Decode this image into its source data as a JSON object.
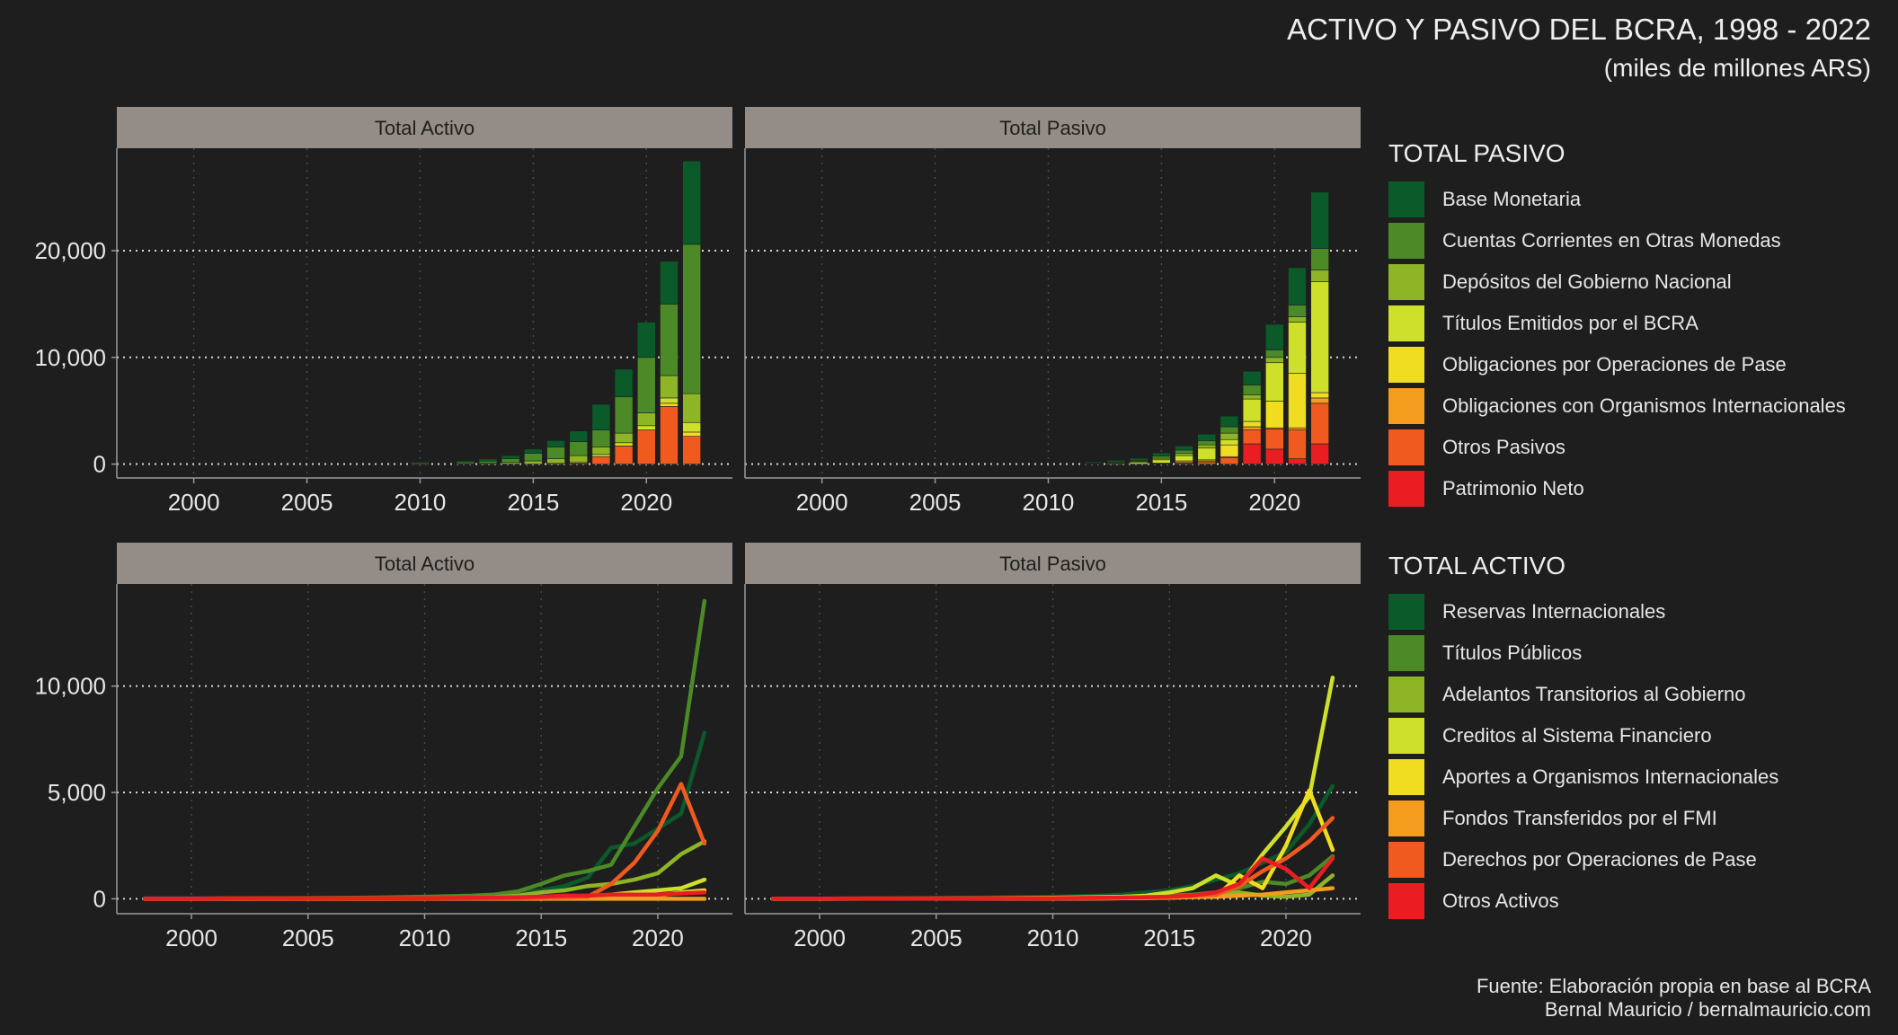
{
  "header": {
    "title": "ACTIVO Y PASIVO DEL BCRA, 1998 - 2022",
    "subtitle": "(miles de millones ARS)"
  },
  "caption": {
    "line1": "Fuente: Elaboración propia en base al BCRA",
    "line2": "Bernal Mauricio / bernalmauricio.com"
  },
  "colors": {
    "background": "#1e1e1e",
    "strip": "#948d87",
    "palette": [
      "#0b5a2a",
      "#4b8a26",
      "#8db526",
      "#cfe02a",
      "#f0dc20",
      "#f39c1e",
      "#f05a1e",
      "#ea1e22"
    ]
  },
  "legends": {
    "pasivo": {
      "title": "TOTAL PASIVO",
      "items": [
        "Base Monetaria",
        "Cuentas Corrientes en Otras Monedas",
        "Depósitos del Gobierno Nacional",
        "Títulos Emitidos por el BCRA",
        "Obligaciones por Operaciones de Pase",
        "Obligaciones con Organismos Internacionales",
        "Otros Pasivos",
        "Patrimonio Neto"
      ]
    },
    "activo": {
      "title": "TOTAL ACTIVO",
      "items": [
        "Reservas Internacionales",
        "Títulos Públicos",
        "Adelantos Transitorios al Gobierno",
        "Creditos al Sistema Financiero",
        "Aportes a Organismos Internacionales",
        "Fondos Transferidos por el FMI",
        "Derechos por Operaciones de Pase",
        "Otros Activos"
      ]
    }
  },
  "chart_data": [
    {
      "type": "bar",
      "stacked": true,
      "panel": "Total Activo",
      "x": [
        2010,
        2012,
        2013,
        2014,
        2015,
        2016,
        2017,
        2018,
        2019,
        2020,
        2021,
        2022
      ],
      "series": [
        {
          "name": "Derechos por Operaciones de Pase",
          "values": [
            0,
            0,
            0,
            0,
            0,
            0,
            100,
            700,
            1700,
            3200,
            5400,
            2600
          ]
        },
        {
          "name": "Aportes a Organismos Internacionales",
          "values": [
            0,
            0,
            0,
            0,
            0,
            0,
            0,
            0,
            0,
            0,
            300,
            400
          ]
        },
        {
          "name": "Creditos al Sistema Financiero",
          "values": [
            0,
            0,
            0,
            0,
            0,
            100,
            100,
            200,
            300,
            400,
            500,
            900
          ]
        },
        {
          "name": "Adelantos Transitorios al Gobierno",
          "values": [
            30,
            50,
            80,
            150,
            300,
            400,
            600,
            700,
            900,
            1200,
            2100,
            2700
          ]
        },
        {
          "name": "Títulos Públicos",
          "values": [
            100,
            150,
            200,
            350,
            700,
            1100,
            1300,
            1600,
            3400,
            5200,
            6700,
            14000
          ]
        },
        {
          "name": "Reservas Internacionales",
          "values": [
            70,
            100,
            200,
            300,
            400,
            600,
            1000,
            2400,
            2600,
            3300,
            4000,
            7800
          ]
        }
      ],
      "ylim": [
        -1300,
        29600
      ],
      "yticks": [
        0,
        10000,
        20000
      ],
      "ytick_labels": [
        "0",
        "10,000",
        "20,000"
      ],
      "xticks": [
        2000,
        2005,
        2010,
        2015,
        2020
      ],
      "xlim": [
        1996.6,
        2023.8
      ],
      "grid": true
    },
    {
      "type": "bar",
      "stacked": true,
      "panel": "Total Pasivo",
      "x": [
        2012,
        2013,
        2014,
        2015,
        2016,
        2017,
        2018,
        2019,
        2020,
        2021,
        2022
      ],
      "series": [
        {
          "name": "Patrimonio Neto",
          "values": [
            0,
            0,
            0,
            0,
            0,
            0,
            0,
            1900,
            1400,
            500,
            1900
          ]
        },
        {
          "name": "Otros Pasivos",
          "values": [
            0,
            0,
            0,
            50,
            100,
            200,
            600,
            1300,
            1900,
            2700,
            3800
          ]
        },
        {
          "name": "Obligaciones con Organismos Internacionales",
          "values": [
            0,
            0,
            0,
            50,
            100,
            100,
            100,
            300,
            100,
            200,
            500
          ]
        },
        {
          "name": "Obligaciones por Operaciones de Pase",
          "values": [
            0,
            0,
            0,
            0,
            100,
            100,
            1100,
            500,
            2500,
            5100,
            500
          ]
        },
        {
          "name": "Títulos Emitidos por el BCRA",
          "values": [
            50,
            80,
            150,
            300,
            500,
            1100,
            500,
            2100,
            3600,
            4800,
            10400
          ]
        },
        {
          "name": "Depósitos del Gobierno Nacional",
          "values": [
            0,
            50,
            100,
            150,
            200,
            300,
            600,
            400,
            500,
            500,
            1100
          ]
        },
        {
          "name": "Cuentas Corrientes en Otras Monedas",
          "values": [
            50,
            80,
            100,
            200,
            300,
            400,
            600,
            900,
            700,
            1100,
            2000
          ]
        },
        {
          "name": "Base Monetaria",
          "values": [
            100,
            150,
            200,
            300,
            400,
            600,
            1000,
            1300,
            2400,
            3500,
            5300
          ]
        }
      ],
      "ylim": [
        -1300,
        29600
      ],
      "yticks": [
        0,
        10000,
        20000
      ],
      "ytick_labels": [
        "0",
        "10,000",
        "20,000"
      ],
      "xticks": [
        2000,
        2005,
        2010,
        2015,
        2020
      ],
      "xlim": [
        1996.6,
        2023.8
      ],
      "grid": true
    },
    {
      "type": "line",
      "panel": "Total Activo",
      "x": [
        1998,
        2000,
        2002,
        2004,
        2006,
        2008,
        2010,
        2012,
        2013,
        2014,
        2015,
        2016,
        2017,
        2018,
        2019,
        2020,
        2021,
        2022
      ],
      "series": [
        {
          "name": "Reservas Internacionales",
          "values": [
            25,
            25,
            30,
            30,
            30,
            40,
            70,
            100,
            200,
            300,
            400,
            600,
            1000,
            2400,
            2600,
            3300,
            4000,
            7800
          ]
        },
        {
          "name": "Títulos Públicos",
          "values": [
            10,
            10,
            20,
            30,
            40,
            60,
            100,
            150,
            200,
            350,
            700,
            1100,
            1300,
            1600,
            3400,
            5200,
            6700,
            14000
          ]
        },
        {
          "name": "Adelantos Transitorios al Gobierno",
          "values": [
            5,
            5,
            10,
            10,
            15,
            20,
            30,
            50,
            80,
            150,
            300,
            400,
            600,
            700,
            900,
            1200,
            2100,
            2700
          ]
        },
        {
          "name": "Creditos al Sistema Financiero",
          "values": [
            5,
            5,
            10,
            10,
            10,
            10,
            10,
            20,
            20,
            30,
            40,
            100,
            100,
            200,
            300,
            400,
            500,
            900
          ]
        },
        {
          "name": "Aportes a Organismos Internacionales",
          "values": [
            0,
            0,
            0,
            0,
            0,
            0,
            10,
            20,
            20,
            20,
            30,
            40,
            50,
            80,
            100,
            150,
            300,
            400
          ]
        },
        {
          "name": "Fondos Transferidos por el FMI",
          "values": [
            0,
            0,
            0,
            0,
            0,
            0,
            0,
            0,
            0,
            0,
            0,
            0,
            0,
            0,
            0,
            0,
            0,
            0
          ]
        },
        {
          "name": "Derechos por Operaciones de Pase",
          "values": [
            0,
            0,
            20,
            10,
            10,
            10,
            10,
            20,
            20,
            30,
            50,
            60,
            100,
            700,
            1700,
            3200,
            5400,
            2600
          ]
        },
        {
          "name": "Otros Activos",
          "values": [
            10,
            10,
            20,
            20,
            20,
            30,
            30,
            50,
            60,
            70,
            100,
            150,
            150,
            200,
            200,
            200,
            250,
            300
          ]
        }
      ],
      "ylim": [
        -700,
        14800
      ],
      "yticks": [
        0,
        5000,
        10000
      ],
      "ytick_labels": [
        "0",
        "5,000",
        "10,000"
      ],
      "xticks": [
        2000,
        2005,
        2010,
        2015,
        2020
      ],
      "xlim": [
        1996.8,
        2023.2
      ],
      "grid": true
    },
    {
      "type": "line",
      "panel": "Total Pasivo",
      "x": [
        1998,
        2000,
        2002,
        2004,
        2006,
        2008,
        2010,
        2012,
        2013,
        2014,
        2015,
        2016,
        2017,
        2018,
        2019,
        2020,
        2021,
        2022
      ],
      "series": [
        {
          "name": "Base Monetaria",
          "values": [
            15,
            15,
            30,
            40,
            50,
            70,
            100,
            150,
            200,
            300,
            400,
            600,
            900,
            1200,
            1700,
            2200,
            3500,
            5300
          ]
        },
        {
          "name": "Cuentas Corrientes en Otras Monedas",
          "values": [
            5,
            5,
            10,
            10,
            10,
            20,
            30,
            50,
            80,
            100,
            150,
            200,
            300,
            500,
            800,
            700,
            1100,
            2000
          ]
        },
        {
          "name": "Depósitos del Gobierno Nacional",
          "values": [
            5,
            5,
            10,
            10,
            10,
            10,
            20,
            30,
            50,
            80,
            100,
            150,
            200,
            300,
            150,
            100,
            200,
            1100
          ]
        },
        {
          "name": "Títulos Emitidos por el BCRA",
          "values": [
            0,
            0,
            5,
            10,
            20,
            40,
            50,
            80,
            100,
            150,
            300,
            500,
            1100,
            600,
            2100,
            3400,
            4800,
            10400
          ]
        },
        {
          "name": "Obligaciones por Operaciones de Pase",
          "values": [
            0,
            0,
            5,
            10,
            10,
            10,
            10,
            20,
            30,
            40,
            60,
            100,
            100,
            1100,
            500,
            2500,
            5100,
            2300
          ]
        },
        {
          "name": "Obligaciones con Organismos Internacionales",
          "values": [
            5,
            5,
            10,
            10,
            10,
            10,
            10,
            20,
            30,
            40,
            50,
            80,
            100,
            150,
            200,
            300,
            400,
            500
          ]
        },
        {
          "name": "Otros Pasivos",
          "values": [
            5,
            5,
            10,
            10,
            10,
            20,
            20,
            30,
            50,
            80,
            100,
            150,
            200,
            600,
            1300,
            1900,
            2700,
            3800
          ]
        },
        {
          "name": "Patrimonio Neto",
          "values": [
            10,
            10,
            20,
            20,
            20,
            30,
            30,
            50,
            60,
            70,
            100,
            150,
            300,
            700,
            1900,
            1400,
            500,
            1900
          ]
        }
      ],
      "ylim": [
        -700,
        14800
      ],
      "yticks": [
        0,
        5000,
        10000
      ],
      "ytick_labels": [
        "0",
        "5,000",
        "10,000"
      ],
      "xticks": [
        2000,
        2005,
        2010,
        2015,
        2020
      ],
      "xlim": [
        1996.8,
        2023.2
      ],
      "grid": true
    }
  ]
}
